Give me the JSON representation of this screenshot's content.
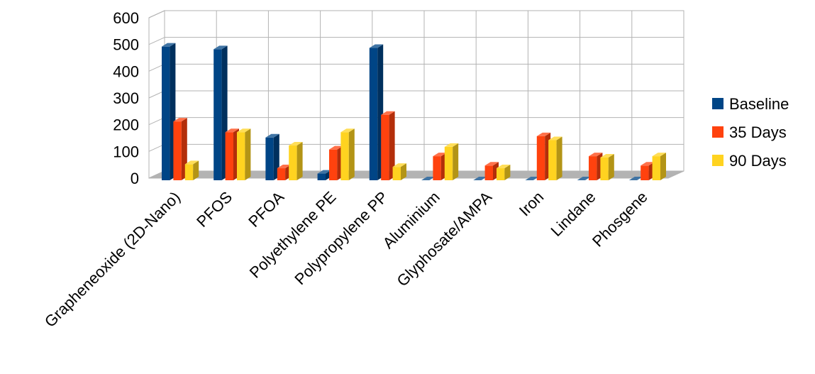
{
  "chart_data": {
    "type": "bar",
    "title": "",
    "xlabel": "",
    "ylabel": "",
    "ylim": [
      0,
      600
    ],
    "yticks": [
      0,
      100,
      200,
      300,
      400,
      500,
      600
    ],
    "grid": true,
    "legend_position": "right",
    "categories": [
      "Grapheneoxide (2D-Nano)",
      "PFOS",
      "PFOA",
      "Polyethylene PE",
      "Polypropylene PP",
      "Aluminium",
      "Glyphosate/AMPA",
      "Iron",
      "Lindane",
      "Phosgene"
    ],
    "series": [
      {
        "name": "Baseline",
        "color": "#004586",
        "values": [
          500,
          490,
          160,
          25,
          495,
          0,
          0,
          0,
          0,
          0
        ]
      },
      {
        "name": "35 Days",
        "color": "#ff420e",
        "values": [
          220,
          180,
          45,
          115,
          245,
          90,
          55,
          165,
          90,
          55
        ]
      },
      {
        "name": "90 Days",
        "color": "#ffd320",
        "values": [
          60,
          180,
          130,
          180,
          50,
          125,
          45,
          150,
          85,
          90
        ]
      }
    ]
  }
}
